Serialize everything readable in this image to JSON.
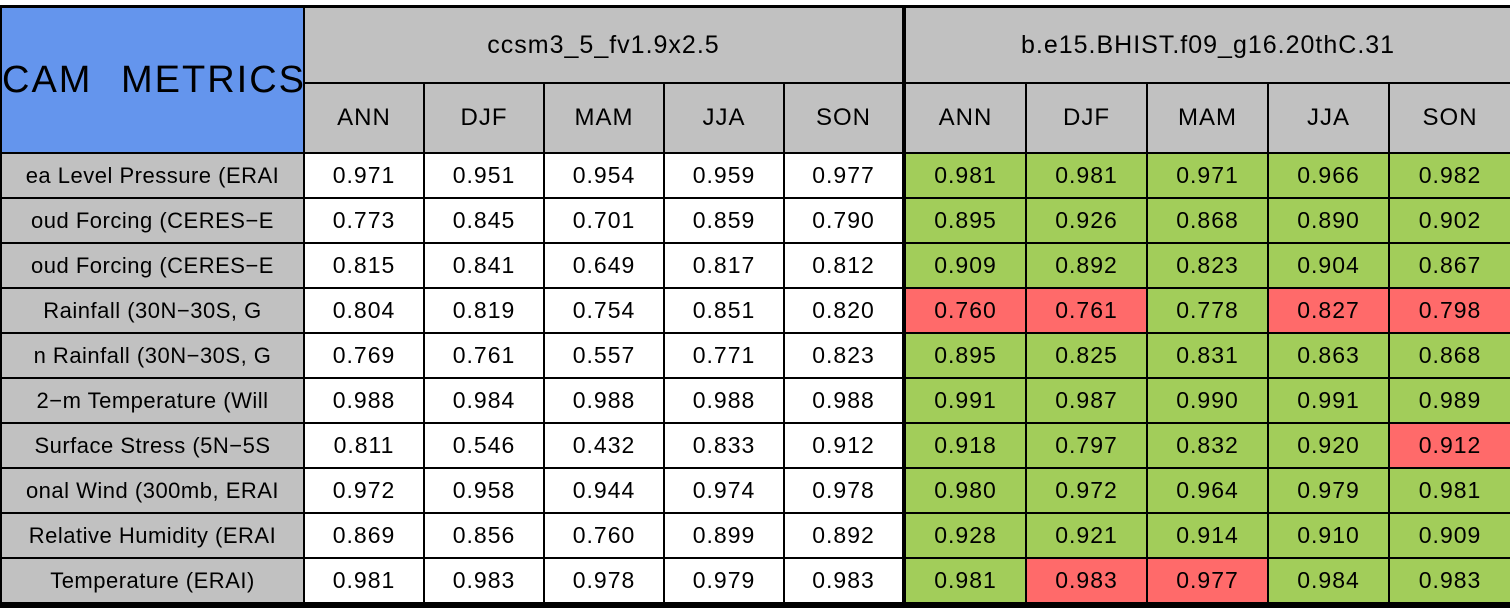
{
  "chart_data": {
    "type": "table",
    "title": "CAM METRICS",
    "corner_label": "CAM METRICS",
    "column_groups": [
      {
        "name": "ccsm3_5_fv1.9x2.5"
      },
      {
        "name": "b.e15.BHIST.f09_g16.20thC.31"
      }
    ],
    "seasons": [
      "ANN",
      "DJF",
      "MAM",
      "JJA",
      "SON"
    ],
    "colors": {
      "header_blue": "#6495ED",
      "header_gray": "#C1C1C1",
      "cell_white": "#FFFFFF",
      "better_green": "#A2CD5A",
      "worse_red": "#FF6A6A",
      "border_black": "#000000"
    },
    "color_legend": {
      "green": "second model scores better / highlighted good",
      "red": "second model scores worse / highlighted bad"
    },
    "rows": [
      {
        "label": "ea Level Pressure (ERAI",
        "model1": [
          "0.971",
          "0.951",
          "0.954",
          "0.959",
          "0.977"
        ],
        "model2": [
          {
            "value": "0.981",
            "color": "green"
          },
          {
            "value": "0.981",
            "color": "green"
          },
          {
            "value": "0.971",
            "color": "green"
          },
          {
            "value": "0.966",
            "color": "green"
          },
          {
            "value": "0.982",
            "color": "green"
          }
        ]
      },
      {
        "label": "oud Forcing (CERES−E",
        "model1": [
          "0.773",
          "0.845",
          "0.701",
          "0.859",
          "0.790"
        ],
        "model2": [
          {
            "value": "0.895",
            "color": "green"
          },
          {
            "value": "0.926",
            "color": "green"
          },
          {
            "value": "0.868",
            "color": "green"
          },
          {
            "value": "0.890",
            "color": "green"
          },
          {
            "value": "0.902",
            "color": "green"
          }
        ]
      },
      {
        "label": "oud Forcing (CERES−E",
        "model1": [
          "0.815",
          "0.841",
          "0.649",
          "0.817",
          "0.812"
        ],
        "model2": [
          {
            "value": "0.909",
            "color": "green"
          },
          {
            "value": "0.892",
            "color": "green"
          },
          {
            "value": "0.823",
            "color": "green"
          },
          {
            "value": "0.904",
            "color": "green"
          },
          {
            "value": "0.867",
            "color": "green"
          }
        ]
      },
      {
        "label": " Rainfall (30N−30S, G",
        "model1": [
          "0.804",
          "0.819",
          "0.754",
          "0.851",
          "0.820"
        ],
        "model2": [
          {
            "value": "0.760",
            "color": "red"
          },
          {
            "value": "0.761",
            "color": "red"
          },
          {
            "value": "0.778",
            "color": "green"
          },
          {
            "value": "0.827",
            "color": "red"
          },
          {
            "value": "0.798",
            "color": "red"
          }
        ]
      },
      {
        "label": "n Rainfall (30N−30S, G",
        "model1": [
          "0.769",
          "0.761",
          "0.557",
          "0.771",
          "0.823"
        ],
        "model2": [
          {
            "value": "0.895",
            "color": "green"
          },
          {
            "value": "0.825",
            "color": "green"
          },
          {
            "value": "0.831",
            "color": "green"
          },
          {
            "value": "0.863",
            "color": "green"
          },
          {
            "value": "0.868",
            "color": "green"
          }
        ]
      },
      {
        "label": "2−m Temperature (Will",
        "model1": [
          "0.988",
          "0.984",
          "0.988",
          "0.988",
          "0.988"
        ],
        "model2": [
          {
            "value": "0.991",
            "color": "green"
          },
          {
            "value": "0.987",
            "color": "green"
          },
          {
            "value": "0.990",
            "color": "green"
          },
          {
            "value": "0.991",
            "color": "green"
          },
          {
            "value": "0.989",
            "color": "green"
          }
        ]
      },
      {
        "label": " Surface Stress (5N−5S",
        "model1": [
          "0.811",
          "0.546",
          "0.432",
          "0.833",
          "0.912"
        ],
        "model2": [
          {
            "value": "0.918",
            "color": "green"
          },
          {
            "value": "0.797",
            "color": "green"
          },
          {
            "value": "0.832",
            "color": "green"
          },
          {
            "value": "0.920",
            "color": "green"
          },
          {
            "value": "0.912",
            "color": "red"
          }
        ]
      },
      {
        "label": "onal Wind (300mb, ERAI",
        "model1": [
          "0.972",
          "0.958",
          "0.944",
          "0.974",
          "0.978"
        ],
        "model2": [
          {
            "value": "0.980",
            "color": "green"
          },
          {
            "value": "0.972",
            "color": "green"
          },
          {
            "value": "0.964",
            "color": "green"
          },
          {
            "value": "0.979",
            "color": "green"
          },
          {
            "value": "0.981",
            "color": "green"
          }
        ]
      },
      {
        "label": "Relative Humidity (ERAI",
        "model1": [
          "0.869",
          "0.856",
          "0.760",
          "0.899",
          "0.892"
        ],
        "model2": [
          {
            "value": "0.928",
            "color": "green"
          },
          {
            "value": "0.921",
            "color": "green"
          },
          {
            "value": "0.914",
            "color": "green"
          },
          {
            "value": "0.910",
            "color": "green"
          },
          {
            "value": "0.909",
            "color": "green"
          }
        ]
      },
      {
        "label": " Temperature (ERAI)",
        "model1": [
          "0.981",
          "0.983",
          "0.978",
          "0.979",
          "0.983"
        ],
        "model2": [
          {
            "value": "0.981",
            "color": "green"
          },
          {
            "value": "0.983",
            "color": "red"
          },
          {
            "value": "0.977",
            "color": "red"
          },
          {
            "value": "0.984",
            "color": "green"
          },
          {
            "value": "0.983",
            "color": "green"
          }
        ]
      }
    ]
  }
}
